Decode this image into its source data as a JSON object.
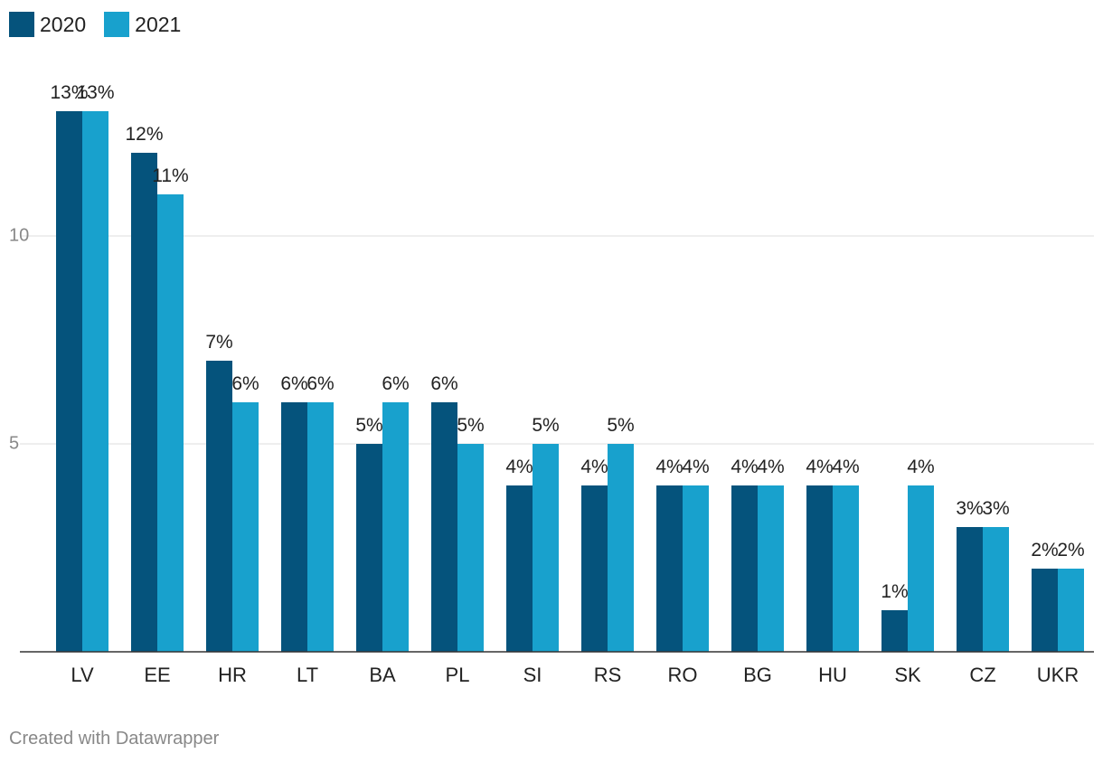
{
  "legend": [
    {
      "label": "2020",
      "color": "#05537c"
    },
    {
      "label": "2021",
      "color": "#18a1cd"
    }
  ],
  "footer": {
    "credit": "Created with Datawrapper"
  },
  "chart_data": {
    "type": "bar",
    "title": "",
    "xlabel": "",
    "ylabel": "",
    "categories": [
      "LV",
      "EE",
      "HR",
      "LT",
      "BA",
      "PL",
      "SI",
      "RS",
      "RO",
      "BG",
      "HU",
      "SK",
      "CZ",
      "UKR"
    ],
    "series": [
      {
        "name": "2020",
        "color": "#05537c",
        "values": [
          13,
          12,
          7,
          6,
          5,
          6,
          4,
          4,
          4,
          4,
          4,
          1,
          3,
          2
        ],
        "labels": [
          "13%",
          "12%",
          "7%",
          "6%",
          "5%",
          "6%",
          "4%",
          "4%",
          "4%",
          "4%",
          "4%",
          "1%",
          "3%",
          "2%"
        ]
      },
      {
        "name": "2021",
        "color": "#18a1cd",
        "values": [
          13,
          11,
          6,
          6,
          6,
          5,
          5,
          5,
          4,
          4,
          4,
          4,
          3,
          2
        ],
        "labels": [
          "13%",
          "11%",
          "6%",
          "6%",
          "6%",
          "5%",
          "5%",
          "5%",
          "4%",
          "4%",
          "4%",
          "4%",
          "3%",
          "2%"
        ]
      }
    ],
    "ylim": [
      0,
      14
    ],
    "yticks": [
      5,
      10
    ],
    "ytick_labels": [
      "5",
      "10"
    ],
    "grid": true,
    "legend_position": "top-left"
  }
}
